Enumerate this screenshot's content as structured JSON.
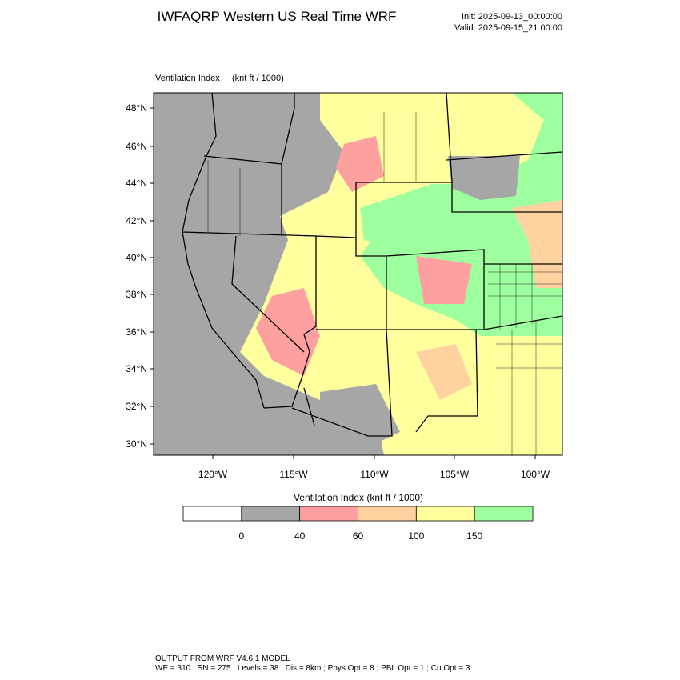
{
  "header": {
    "title": "IWFAQRP Western US Real Time WRF",
    "init": "Init: 2025-09-13_00:00:00",
    "valid": "Valid: 2025-09-15_21:00:00"
  },
  "map": {
    "label": "Ventilation Index",
    "units": "(knt ft / 1000)",
    "lat_labels": [
      "48°N",
      "46°N",
      "44°N",
      "42°N",
      "40°N",
      "38°N",
      "36°N",
      "34°N",
      "32°N",
      "30°N"
    ],
    "lon_labels": [
      "120°W",
      "115°W",
      "110°W",
      "105°W",
      "100°W"
    ]
  },
  "colorbar": {
    "title": "Ventilation Index   (knt ft / 1000)",
    "levels": [
      "0",
      "40",
      "60",
      "100",
      "150"
    ],
    "colors": [
      "#ffffff",
      "#a6a6a6",
      "#ffa0a0",
      "#ffd2a0",
      "#ffff9e",
      "#9eff9e"
    ]
  },
  "footer": {
    "line1": "OUTPUT FROM WRF V4.6.1 MODEL",
    "line2": "WE = 310 ; SN = 275 ; Levels = 38 ; Dis = 8km ; Phys Opt = 8 ; PBL Opt = 1 ; Cu Opt = 3"
  }
}
